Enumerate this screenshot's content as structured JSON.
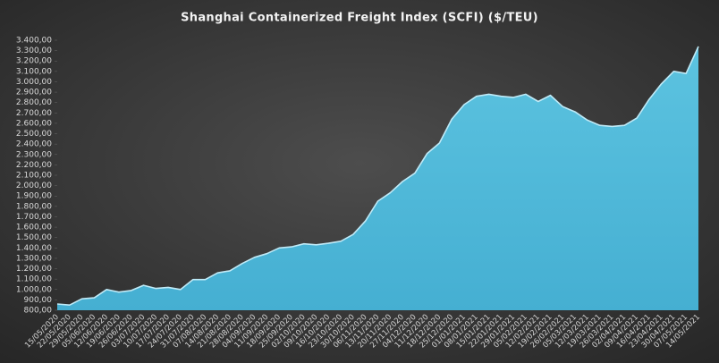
{
  "chart_data": {
    "type": "area",
    "title": "Shanghai Containerized Freight Index  (SCFI) ($/TEU)",
    "color": "#4fb9d9",
    "categories": [
      "15/05/2020",
      "22/05/2020",
      "29/05/2020",
      "05/06/2020",
      "12/06/2020",
      "19/06/2020",
      "26/06/2020",
      "03/07/2020",
      "10/07/2020",
      "17/07/2020",
      "24/07/2020",
      "31/07/2020",
      "07/08/2020",
      "14/08/2020",
      "21/08/2020",
      "28/08/2020",
      "04/09/2020",
      "11/09/2020",
      "18/09/2020",
      "25/09/2020",
      "02/10/2020",
      "09/10/2020",
      "16/10/2020",
      "23/10/2020",
      "30/10/2020",
      "06/11/2020",
      "13/11/2020",
      "20/11/2020",
      "27/11/2020",
      "04/12/2020",
      "11/12/2020",
      "18/12/2020",
      "25/12/2020",
      "01/01/2021",
      "08/01/2021",
      "15/01/2021",
      "22/01/2021",
      "29/01/2021",
      "05/02/2021",
      "12/02/2021",
      "19/02/2021",
      "26/02/2021",
      "05/03/2021",
      "12/03/2021",
      "19/03/2021",
      "26/03/2021",
      "02/04/2021",
      "09/04/2021",
      "16/04/2021",
      "23/04/2021",
      "30/04/2021",
      "07/05/2021",
      "14/05/2021"
    ],
    "values": [
      860,
      850,
      910,
      920,
      1000,
      975,
      990,
      1040,
      1010,
      1020,
      1000,
      1095,
      1095,
      1160,
      1180,
      1250,
      1310,
      1345,
      1400,
      1410,
      1440,
      1430,
      1445,
      1465,
      1530,
      1660,
      1850,
      1930,
      2040,
      2120,
      2310,
      2410,
      2640,
      2780,
      2860,
      2880,
      2860,
      2850,
      2880,
      2810,
      2870,
      2760,
      2710,
      2630,
      2580,
      2570,
      2580,
      2650,
      2830,
      2980,
      3100,
      3080,
      3340
    ],
    "ylim": [
      800,
      3400
    ],
    "yticks": [
      {
        "value": 800,
        "label": "800,00"
      },
      {
        "value": 900,
        "label": "900,00"
      },
      {
        "value": 1000,
        "label": "1.000,00"
      },
      {
        "value": 1100,
        "label": "1.100,00"
      },
      {
        "value": 1200,
        "label": "1.200,00"
      },
      {
        "value": 1300,
        "label": "1.300,00"
      },
      {
        "value": 1400,
        "label": "1.400,00"
      },
      {
        "value": 1500,
        "label": "1.500,00"
      },
      {
        "value": 1600,
        "label": "1.600,00"
      },
      {
        "value": 1700,
        "label": "1.700,00"
      },
      {
        "value": 1800,
        "label": "1.800,00"
      },
      {
        "value": 1900,
        "label": "1.900,00"
      },
      {
        "value": 2000,
        "label": "2.000,00"
      },
      {
        "value": 2100,
        "label": "2.100,00"
      },
      {
        "value": 2200,
        "label": "2.200,00"
      },
      {
        "value": 2300,
        "label": "2.300,00"
      },
      {
        "value": 2400,
        "label": "2.400,00"
      },
      {
        "value": 2500,
        "label": "2.500,00"
      },
      {
        "value": 2600,
        "label": "2.600,00"
      },
      {
        "value": 2700,
        "label": "2.700,00"
      },
      {
        "value": 2800,
        "label": "2.800,00"
      },
      {
        "value": 2900,
        "label": "2.900,00"
      },
      {
        "value": 3000,
        "label": "3.000,00"
      },
      {
        "value": 3100,
        "label": "3.100,00"
      },
      {
        "value": 3200,
        "label": "3.200,00"
      },
      {
        "value": 3300,
        "label": "3.300,00"
      },
      {
        "value": 3400,
        "label": "3.400,00"
      }
    ],
    "grid": false
  }
}
